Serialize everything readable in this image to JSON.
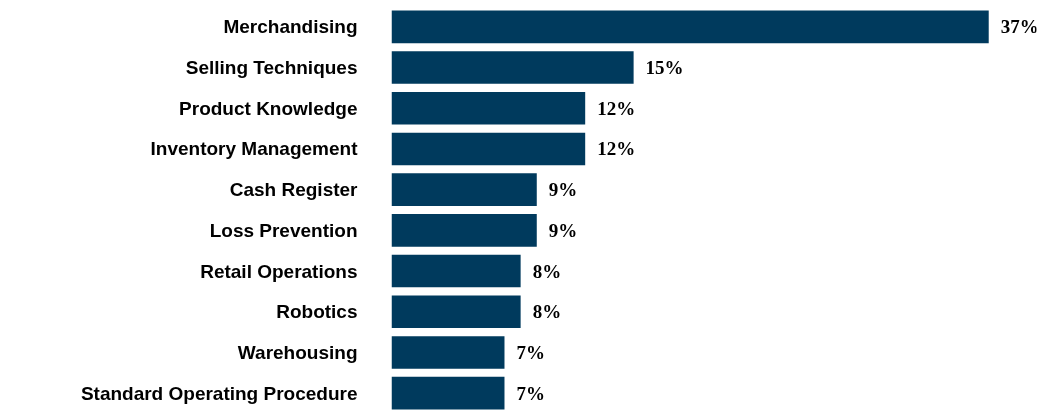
{
  "chart_data": {
    "type": "bar",
    "orientation": "horizontal",
    "categories": [
      "Merchandising",
      "Selling Techniques",
      "Product Knowledge",
      "Inventory Management",
      "Cash Register",
      "Loss Prevention",
      "Retail Operations",
      "Robotics",
      "Warehousing",
      "Standard Operating Procedure"
    ],
    "values": [
      37,
      15,
      12,
      12,
      9,
      9,
      8,
      8,
      7,
      7
    ],
    "value_labels": [
      "37%",
      "15%",
      "12%",
      "12%",
      "9%",
      "9%",
      "8%",
      "8%",
      "7%",
      "7%"
    ],
    "color": "#003a5d",
    "grid": false,
    "tick_labels": "y"
  }
}
